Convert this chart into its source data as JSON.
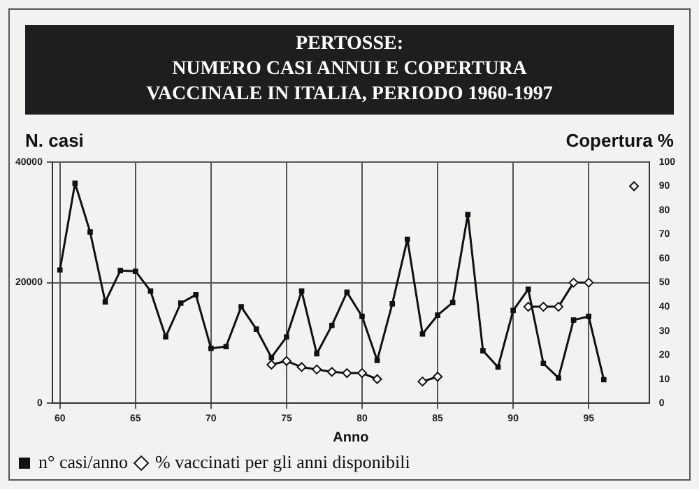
{
  "chart_data": {
    "type": "line",
    "title": "PERTOSSE:\nNUMERO CASI ANNUI E COPERTURA\nVACCINALE IN ITALIA, PERIODO 1960-1997",
    "xlabel": "Anno",
    "ylabel": "N. casi",
    "y2label": "Copertura %",
    "xlim": [
      59.5,
      99
    ],
    "xticks": [
      60,
      65,
      70,
      75,
      80,
      85,
      90,
      95
    ],
    "ylim": [
      0,
      40000
    ],
    "yticks": [
      0,
      20000,
      40000
    ],
    "y2lim": [
      0,
      100
    ],
    "y2ticks": [
      0,
      10,
      20,
      30,
      40,
      50,
      60,
      70,
      80,
      90,
      100
    ],
    "grid": true,
    "legend": "bottom left",
    "line_style": "solid",
    "series": [
      {
        "name": "n° casi/anno",
        "color": "#111111",
        "marker": "square",
        "x": [
          60,
          61,
          62,
          63,
          64,
          65,
          66,
          67,
          68,
          69,
          70,
          71,
          72,
          73,
          74,
          75,
          76,
          77,
          78,
          79,
          80,
          81,
          82,
          83,
          84,
          85,
          86,
          87,
          88,
          89,
          90,
          91,
          92,
          93,
          94,
          95,
          96
        ],
        "values": [
          22100,
          36500,
          28400,
          16800,
          22000,
          21900,
          18600,
          11000,
          16600,
          18000,
          9100,
          9400,
          16000,
          12300,
          7600,
          11000,
          18600,
          8200,
          12900,
          18400,
          14400,
          7100,
          16500,
          27200,
          11500,
          14600,
          16700,
          31300,
          8700,
          6000,
          15400,
          18900,
          6600,
          4200,
          13800,
          14400,
          3900
        ]
      },
      {
        "name": "% vaccinati per gli anni disponibili",
        "color": "#111111",
        "marker": "diamond",
        "axis": "y2",
        "x": [
          74,
          75,
          76,
          77,
          78,
          79,
          80,
          81,
          82,
          83,
          84,
          85,
          86,
          87,
          88,
          89,
          90,
          91,
          92,
          93,
          94,
          95,
          96,
          97,
          98
        ],
        "values": [
          16,
          17.5,
          15,
          14,
          13,
          12.5,
          12.5,
          10,
          null,
          null,
          9,
          11,
          null,
          null,
          null,
          null,
          null,
          40,
          40,
          40,
          50,
          50,
          null,
          null,
          90
        ]
      }
    ]
  }
}
